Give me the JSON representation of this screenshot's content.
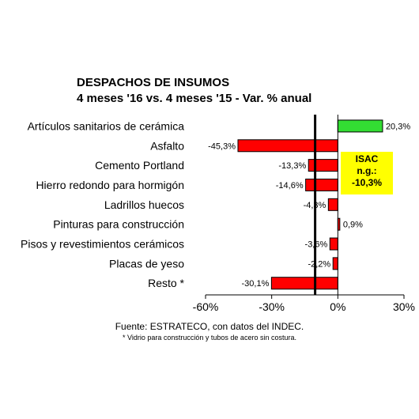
{
  "chart_data": {
    "type": "bar",
    "orientation": "horizontal",
    "title": "DESPACHOS DE INSUMOS",
    "subtitle": "4 meses '16 vs. 4 meses '15 - Var. % anual",
    "categories": [
      "Artículos sanitarios de cerámica",
      "Asfalto",
      "Cemento Portland",
      "Hierro redondo para hormigón",
      "Ladrillos huecos",
      "Pinturas para construcción",
      "Pisos y revestimientos cerámicos",
      "Placas de yeso",
      "Resto *"
    ],
    "values": [
      20.3,
      -45.3,
      -13.3,
      -14.6,
      -4.3,
      0.9,
      -3.6,
      -2.2,
      -30.1
    ],
    "data_labels": [
      "20,3%",
      "-45,3%",
      "-13,3%",
      "-14,6%",
      "-4,3%",
      "0,9%",
      "-3,6%",
      "-2,2%",
      "-30,1%"
    ],
    "bar_colors": [
      "#33dd33",
      "#ff0000",
      "#ff0000",
      "#ff0000",
      "#ff0000",
      "#ff0000",
      "#ff0000",
      "#ff0000",
      "#ff0000"
    ],
    "xlim": [
      -60,
      30
    ],
    "xticks": [
      -60,
      -30,
      0,
      30
    ],
    "xtick_labels": [
      "-60%",
      "-30%",
      "0%",
      "30%"
    ],
    "reference_line": {
      "value": -10.3
    },
    "grid": false,
    "legend": "none"
  },
  "annotation": {
    "line1": "ISAC",
    "line2": "n.g.:",
    "line3": "-10,3%",
    "background": "#ffff00"
  },
  "footer": {
    "source": "Fuente: ESTRATECO, con datos del INDEC.",
    "note": "* Vidrio para construcción y tubos de acero sin costura."
  }
}
